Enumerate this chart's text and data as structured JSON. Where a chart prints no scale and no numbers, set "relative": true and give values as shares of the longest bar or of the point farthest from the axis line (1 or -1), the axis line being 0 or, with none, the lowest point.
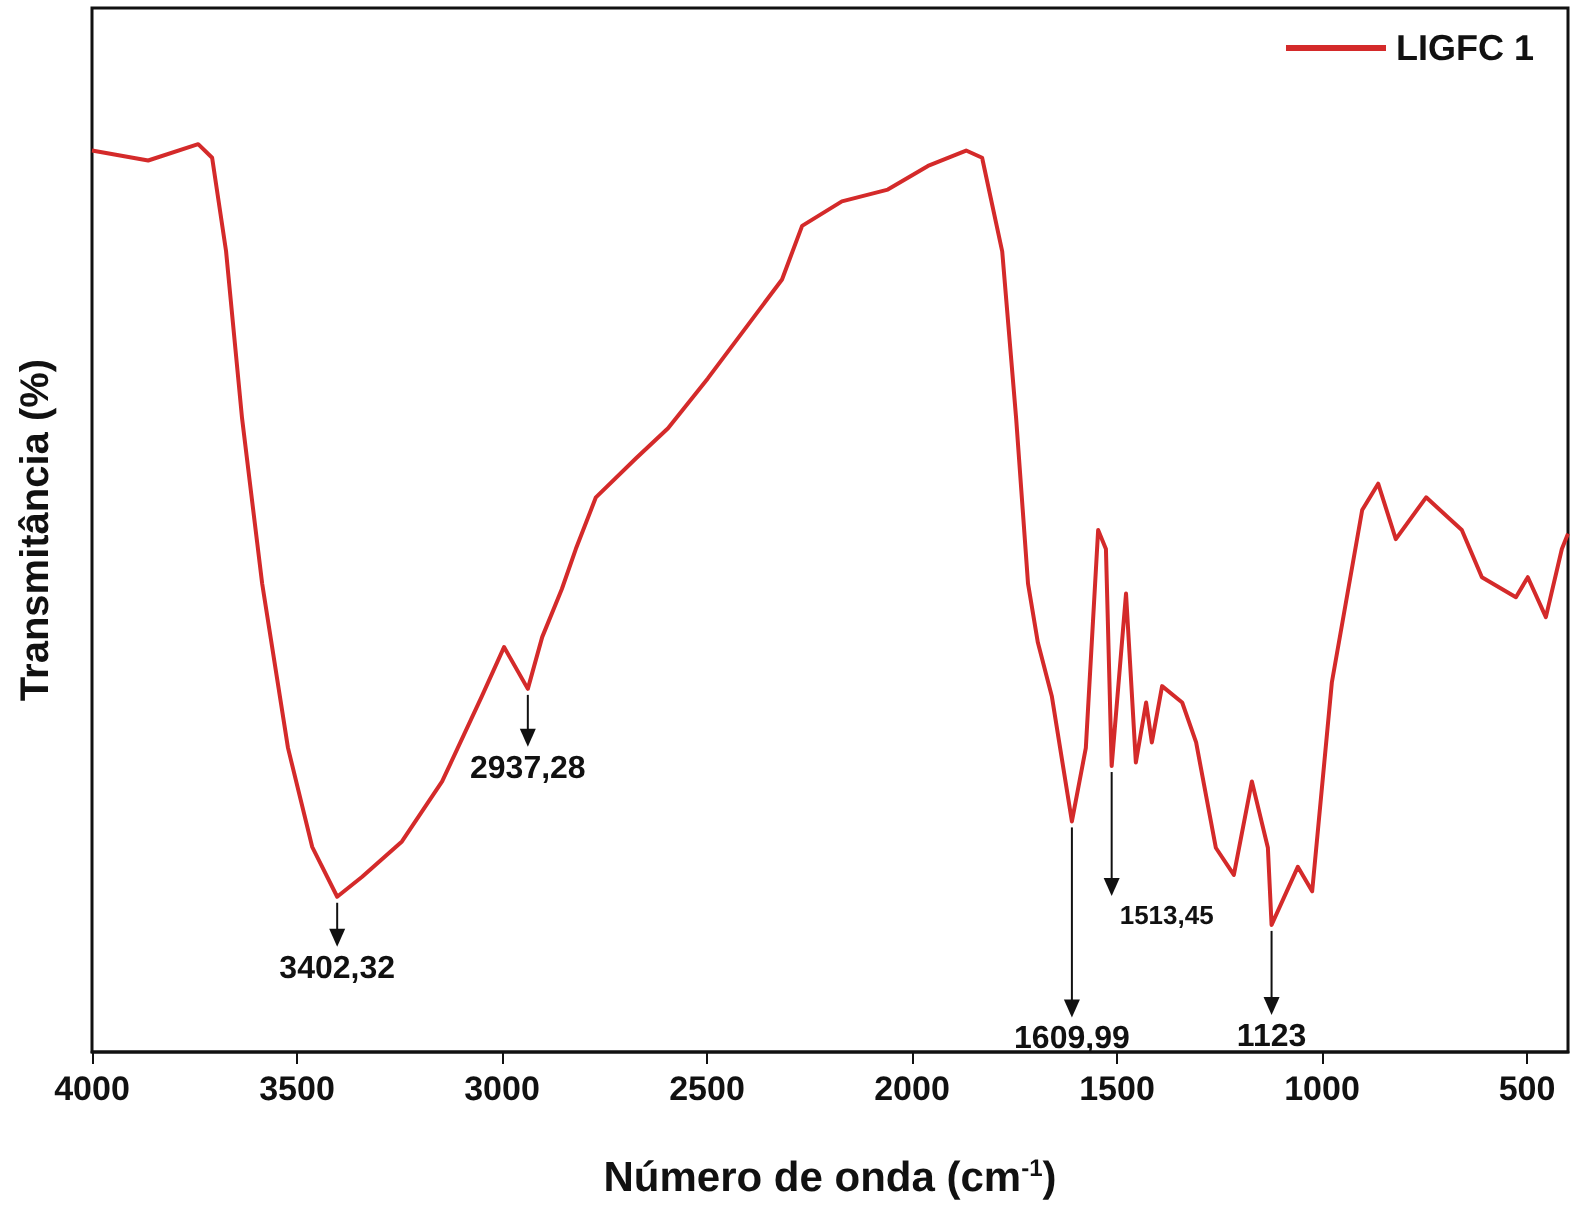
{
  "chart_data": {
    "type": "line",
    "xlabel": "Número de onda (cm$^{-1}$)",
    "ylabel": "Transmitância (%)",
    "relative": true,
    "xlim": [
      4000,
      400
    ],
    "xticks": [
      4000,
      3500,
      3000,
      2500,
      2000,
      1500,
      1000,
      500
    ],
    "legend": "top right",
    "marker": "none",
    "grid": false,
    "series": [
      {
        "name": "LIGFC 1",
        "color": "#d42a2a",
        "x": [
          4000,
          3863,
          3741,
          3707,
          3673,
          3634,
          3585,
          3522,
          3463,
          3402,
          3341,
          3244,
          3146,
          3049,
          2995,
          2937,
          2902,
          2854,
          2820,
          2771,
          2673,
          2595,
          2498,
          2400,
          2317,
          2268,
          2171,
          2059,
          1961,
          1868,
          1829,
          1780,
          1746,
          1717,
          1693,
          1659,
          1610,
          1576,
          1546,
          1527,
          1513,
          1478,
          1454,
          1429,
          1415,
          1390,
          1341,
          1307,
          1259,
          1215,
          1171,
          1132,
          1123,
          1059,
          1024,
          976,
          902,
          863,
          820,
          746,
          659,
          610,
          527,
          498,
          454,
          415,
          400
        ],
        "values": [
          0.993,
          0.982,
          1.0,
          0.985,
          0.882,
          0.698,
          0.516,
          0.335,
          0.226,
          0.171,
          0.193,
          0.232,
          0.298,
          0.392,
          0.446,
          0.4,
          0.457,
          0.51,
          0.554,
          0.611,
          0.654,
          0.687,
          0.742,
          0.801,
          0.851,
          0.91,
          0.937,
          0.95,
          0.976,
          0.993,
          0.985,
          0.882,
          0.698,
          0.516,
          0.451,
          0.392,
          0.254,
          0.335,
          0.575,
          0.554,
          0.315,
          0.505,
          0.319,
          0.385,
          0.341,
          0.403,
          0.385,
          0.341,
          0.225,
          0.195,
          0.298,
          0.225,
          0.14,
          0.204,
          0.177,
          0.407,
          0.597,
          0.626,
          0.565,
          0.611,
          0.575,
          0.523,
          0.501,
          0.523,
          0.479,
          0.554,
          0.571
        ]
      }
    ],
    "annotations": [
      {
        "text": "3402,32",
        "x": 3402,
        "y": 0.171
      },
      {
        "text": "2937,28",
        "x": 2937,
        "y": 0.4
      },
      {
        "text": "1609,99",
        "x": 1610,
        "y": 0.254
      },
      {
        "text": "1513,45",
        "x": 1513,
        "y": 0.315
      },
      {
        "text": "1123",
        "x": 1123,
        "y": 0.14
      }
    ]
  }
}
